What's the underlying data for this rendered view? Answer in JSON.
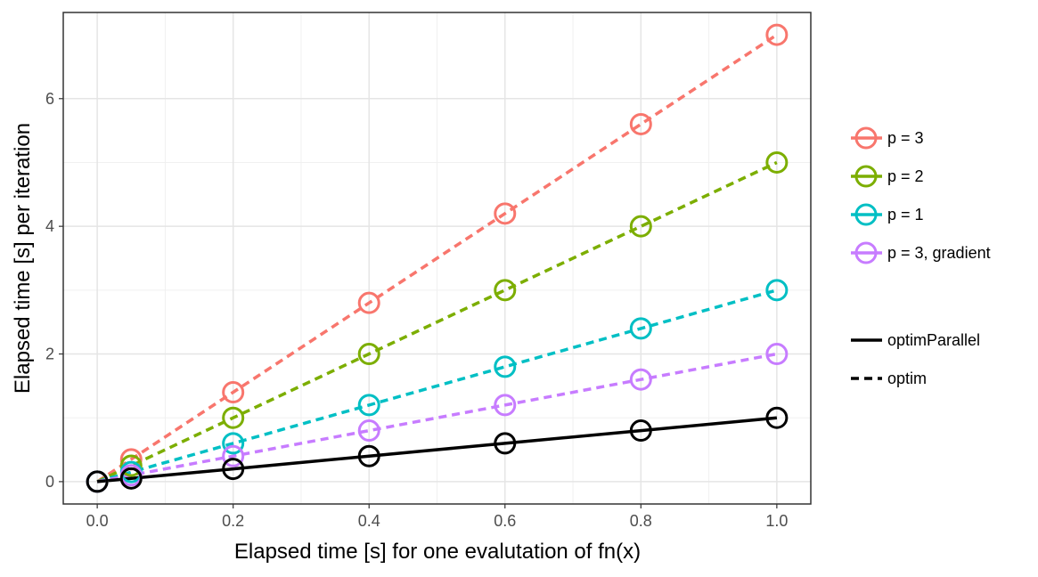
{
  "chart_data": {
    "type": "line",
    "title": "",
    "xlabel": "Elapsed time [s] for one evalutation of fn(x)",
    "ylabel": "Elapsed time [s] per iteration",
    "xlim": [
      -0.05,
      1.05
    ],
    "ylim": [
      -0.35,
      7.35
    ],
    "x_ticks": [
      0.0,
      0.2,
      0.4,
      0.6,
      0.8,
      1.0
    ],
    "x_tick_labels": [
      "0.0",
      "0.2",
      "0.4",
      "0.6",
      "0.8",
      "1.0"
    ],
    "y_ticks": [
      0,
      2,
      4,
      6
    ],
    "y_tick_labels": [
      "0",
      "2",
      "4",
      "6"
    ],
    "grid": true,
    "legend_position": "right",
    "x": [
      0.0,
      0.05,
      0.2,
      0.4,
      0.6,
      0.8,
      1.0
    ],
    "series": [
      {
        "name": "p = 3",
        "color": "#F8766D",
        "linetype": "dashed",
        "values": [
          0.0,
          0.35,
          1.4,
          2.8,
          4.2,
          5.6,
          7.0
        ]
      },
      {
        "name": "p = 2",
        "color": "#7CAE00",
        "linetype": "dashed",
        "values": [
          0.0,
          0.25,
          1.0,
          2.0,
          3.0,
          4.0,
          5.0
        ]
      },
      {
        "name": "p = 1",
        "color": "#00BFC4",
        "linetype": "dashed",
        "values": [
          0.0,
          0.15,
          0.6,
          1.2,
          1.8,
          2.4,
          3.0
        ]
      },
      {
        "name": "p = 3, gradient",
        "color": "#C77CFF",
        "linetype": "dashed",
        "values": [
          0.0,
          0.1,
          0.4,
          0.8,
          1.2,
          1.6,
          2.0
        ]
      },
      {
        "name": "",
        "color": "#000000",
        "linetype": "solid",
        "values": [
          0.0,
          0.05,
          0.2,
          0.4,
          0.6,
          0.8,
          1.0
        ]
      }
    ],
    "legend_colour": [
      {
        "label": "p = 3",
        "color": "#F8766D"
      },
      {
        "label": "p = 2",
        "color": "#7CAE00"
      },
      {
        "label": "p = 1",
        "color": "#00BFC4"
      },
      {
        "label": "p = 3, gradient",
        "color": "#C77CFF"
      }
    ],
    "legend_linetype": [
      {
        "label": "optimParallel",
        "linetype": "solid"
      },
      {
        "label": "optim",
        "linetype": "dashed"
      }
    ]
  }
}
